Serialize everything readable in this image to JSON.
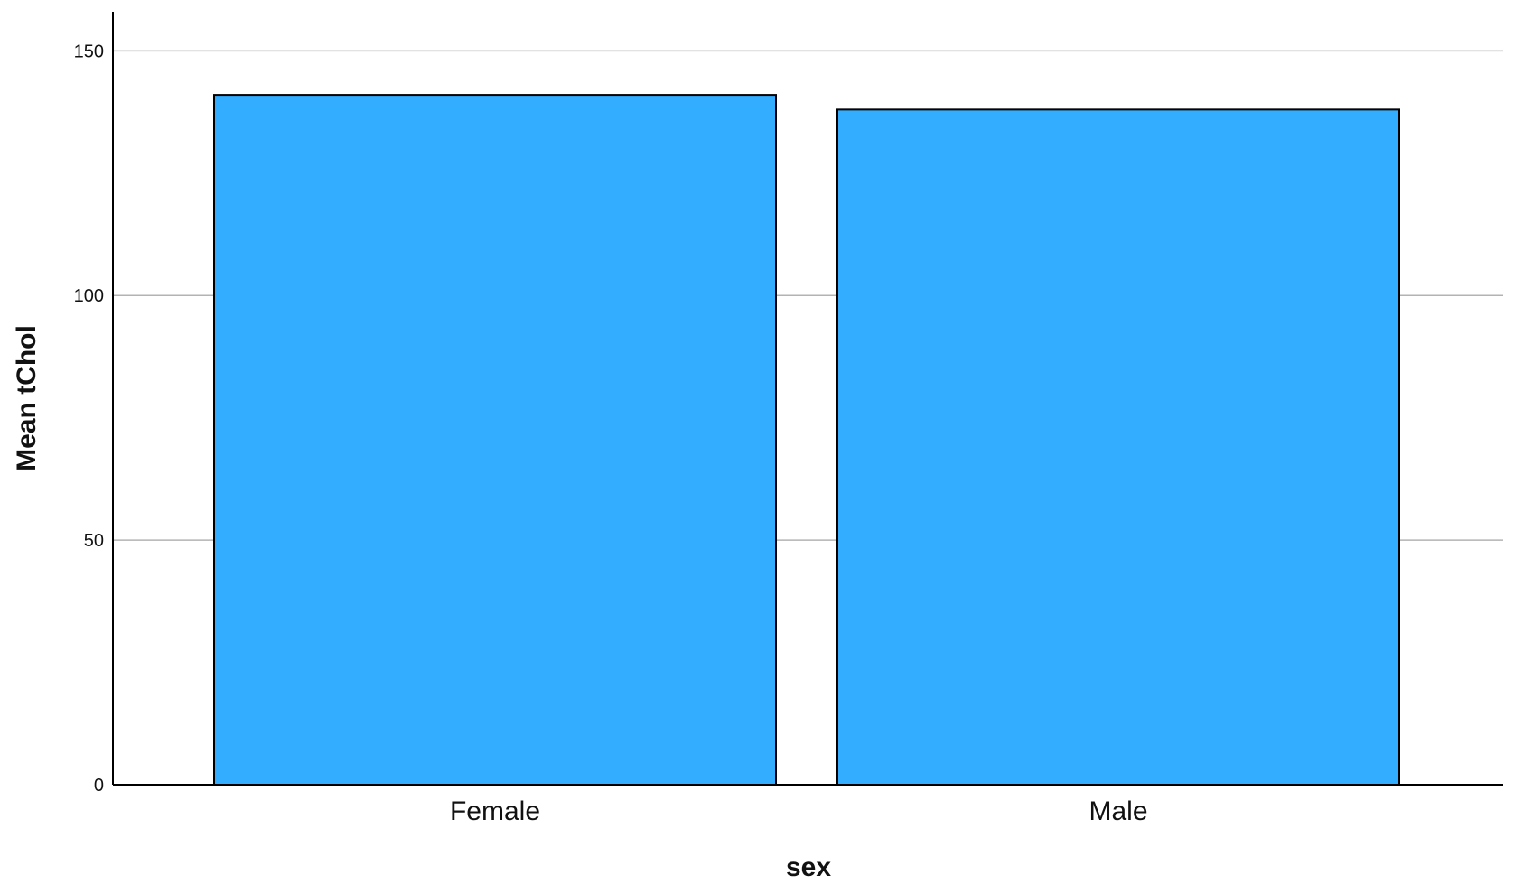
{
  "chart_data": {
    "type": "bar",
    "categories": [
      "Female",
      "Male"
    ],
    "values": [
      141,
      138
    ],
    "title": "",
    "xlabel": "sex",
    "ylabel": "Mean tChol",
    "ylim": [
      0,
      158
    ],
    "yticks": [
      0,
      50,
      100,
      150
    ],
    "grid": true,
    "bar_color": "#33adff",
    "bar_edge_color": "#000000",
    "grid_color": "#b3b3b3"
  }
}
